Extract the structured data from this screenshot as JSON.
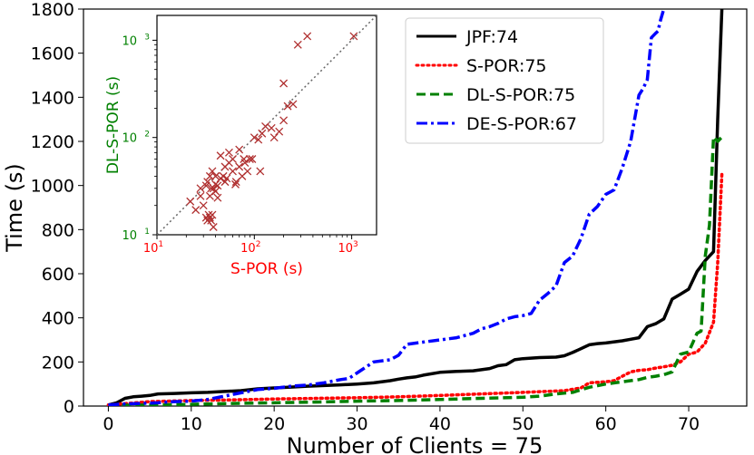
{
  "chart_data": [
    {
      "type": "line",
      "name": "main",
      "xlabel": "Number of Clients = 75",
      "ylabel": "Time (s)",
      "xlim": [
        -3,
        77
      ],
      "ylim": [
        0,
        1800
      ],
      "xticks": [
        0,
        10,
        20,
        30,
        40,
        50,
        60,
        70
      ],
      "yticks": [
        0,
        200,
        400,
        600,
        800,
        1000,
        1200,
        1400,
        1600,
        1800
      ],
      "legend_position": "top-right",
      "series": [
        {
          "name": "JPF:74",
          "color": "#000000",
          "style": "solid",
          "x": [
            0,
            1,
            2,
            3,
            4,
            5,
            6,
            8,
            10,
            12,
            14,
            16,
            18,
            20,
            22,
            24,
            26,
            28,
            30,
            32,
            34,
            35,
            36,
            37,
            38,
            40,
            42,
            44,
            45,
            46,
            47,
            48,
            49,
            50,
            52,
            54,
            55,
            56,
            57,
            58,
            59,
            60,
            62,
            63,
            64,
            65,
            66,
            67,
            68,
            69,
            70,
            71,
            72,
            73,
            73.5,
            74
          ],
          "y": [
            5,
            15,
            35,
            42,
            45,
            48,
            55,
            57,
            60,
            62,
            66,
            70,
            78,
            82,
            86,
            90,
            93,
            96,
            100,
            105,
            115,
            122,
            128,
            132,
            140,
            153,
            157,
            160,
            165,
            170,
            183,
            188,
            210,
            215,
            220,
            222,
            228,
            243,
            260,
            278,
            283,
            286,
            296,
            303,
            310,
            360,
            373,
            395,
            485,
            507,
            530,
            610,
            660,
            700,
            1300,
            1800
          ]
        },
        {
          "name": "S-POR:75",
          "color": "#ff0000",
          "style": "dotted",
          "x": [
            0,
            5,
            10,
            15,
            20,
            25,
            30,
            35,
            40,
            45,
            50,
            55,
            57,
            58,
            60,
            61,
            62,
            63,
            64,
            65,
            66,
            67,
            68,
            69,
            70,
            71,
            72,
            73,
            73.5,
            74
          ],
          "y": [
            5,
            20,
            25,
            28,
            32,
            35,
            38,
            42,
            48,
            55,
            62,
            70,
            82,
            105,
            110,
            115,
            135,
            155,
            162,
            165,
            172,
            178,
            185,
            200,
            235,
            245,
            285,
            380,
            650,
            1050
          ]
        },
        {
          "name": "DL-S-POR:75",
          "color": "#008000",
          "style": "dashed",
          "x": [
            0,
            5,
            10,
            15,
            20,
            25,
            30,
            35,
            40,
            45,
            50,
            52,
            54,
            56,
            58,
            60,
            62,
            64,
            65,
            66,
            67,
            68,
            69,
            70,
            71,
            71.5,
            72,
            72.5,
            73,
            73.5,
            74
          ],
          "y": [
            3,
            5,
            8,
            12,
            15,
            18,
            22,
            25,
            30,
            35,
            40,
            45,
            55,
            62,
            85,
            100,
            110,
            120,
            130,
            135,
            142,
            155,
            235,
            245,
            330,
            340,
            680,
            820,
            1220,
            1200,
            1220
          ]
        },
        {
          "name": "DE-S-POR:67",
          "color": "#0000ff",
          "style": "dashdot",
          "x": [
            0,
            2,
            4,
            6,
            8,
            10,
            12,
            14,
            16,
            18,
            20,
            22,
            24,
            26,
            28,
            29,
            30,
            31,
            32,
            33,
            34,
            35,
            36,
            37,
            38,
            40,
            42,
            44,
            45,
            46,
            47,
            48,
            49,
            50,
            51,
            52,
            53,
            54,
            55,
            56,
            57,
            58,
            59,
            60,
            61,
            62,
            63,
            64,
            64.5,
            65,
            65.5,
            66,
            66.3,
            66.6,
            67
          ],
          "y": [
            5,
            10,
            12,
            15,
            20,
            22,
            30,
            45,
            60,
            75,
            80,
            90,
            95,
            105,
            120,
            125,
            150,
            175,
            200,
            205,
            210,
            230,
            280,
            285,
            290,
            300,
            310,
            330,
            350,
            360,
            375,
            395,
            405,
            410,
            420,
            480,
            510,
            545,
            650,
            680,
            760,
            870,
            905,
            960,
            980,
            1080,
            1200,
            1410,
            1440,
            1480,
            1670,
            1690,
            1700,
            1750,
            1800
          ]
        }
      ]
    },
    {
      "type": "scatter",
      "name": "inset",
      "xlabel": "S-POR (s)",
      "ylabel": "DL-S-POR (s)",
      "xscale": "log",
      "yscale": "log",
      "xlim": [
        10,
        1800
      ],
      "ylim": [
        10,
        1800
      ],
      "x_tick_base": "10",
      "x_tick_exps": [
        "1",
        "2",
        "3"
      ],
      "y_tick_base": "10",
      "y_tick_exps": [
        "1",
        "2",
        "3"
      ],
      "xlabel_color": "#ff0000",
      "ylabel_color": "#008000",
      "marker_color": "#b03030",
      "diagonal": "y = x",
      "x": [
        22,
        25,
        28,
        30,
        32,
        33,
        34,
        35,
        36,
        37,
        38,
        33,
        35,
        37,
        40,
        42,
        45,
        48,
        50,
        55,
        60,
        65,
        70,
        75,
        80,
        85,
        90,
        100,
        110,
        120,
        130,
        150,
        180,
        200,
        220,
        250,
        280,
        350,
        1050,
        115,
        160,
        200,
        45,
        55,
        60,
        70,
        28,
        32,
        35,
        38,
        40,
        42,
        36,
        40,
        50,
        52,
        64,
        78,
        95
      ],
      "y": [
        22,
        18,
        25,
        20,
        15,
        14,
        16,
        15,
        14,
        16,
        12,
        35,
        40,
        45,
        28,
        32,
        38,
        40,
        50,
        55,
        45,
        35,
        50,
        40,
        55,
        45,
        60,
        100,
        95,
        110,
        130,
        125,
        115,
        150,
        210,
        220,
        900,
        1100,
        1100,
        45,
        100,
        360,
        65,
        70,
        60,
        75,
        30,
        32,
        25,
        30,
        40,
        24,
        30,
        33,
        35,
        38,
        33,
        60,
        60
      ]
    }
  ]
}
